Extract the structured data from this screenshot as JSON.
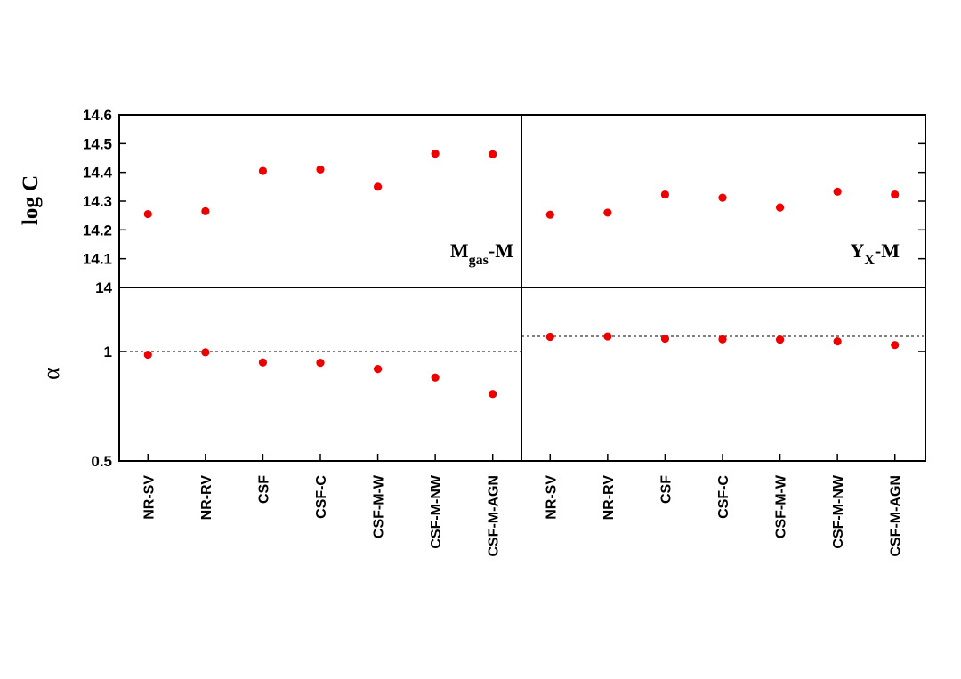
{
  "chart_data": {
    "type": "scatter",
    "categories": [
      "NR-SV",
      "NR-RV",
      "CSF",
      "CSF-C",
      "CSF-M-W",
      "CSF-M-NW",
      "CSF-M-AGN"
    ],
    "marker_color": "#ee0000",
    "panels": [
      {
        "column": "left",
        "label_main": "M",
        "label_sub": "gas",
        "label_tail": "-M",
        "logC": [
          14.255,
          14.265,
          14.405,
          14.41,
          14.35,
          14.465,
          14.463
        ],
        "alpha": [
          0.98,
          0.995,
          0.933,
          0.931,
          0.895,
          0.848,
          0.764
        ],
        "alpha_reference": 1.0
      },
      {
        "column": "right",
        "label_main": "Y",
        "label_sub": "X",
        "label_tail": "-M",
        "logC": [
          14.253,
          14.26,
          14.323,
          14.312,
          14.278,
          14.333,
          14.323
        ],
        "alpha": [
          1.097,
          1.1,
          1.085,
          1.08,
          1.078,
          1.066,
          1.042
        ],
        "alpha_reference": 1.1
      }
    ],
    "top_axis": {
      "ylabel": "log C",
      "ylim": [
        14.0,
        14.6
      ],
      "ticks": [
        "14",
        "14.1",
        "14.2",
        "14.3",
        "14.4",
        "14.5",
        "14.6"
      ]
    },
    "bottom_axis": {
      "ylabel": "α",
      "ylim": [
        0.5,
        1.5
      ],
      "ticks": [
        "0.5",
        "1"
      ]
    },
    "grid": false,
    "legend": "none"
  }
}
